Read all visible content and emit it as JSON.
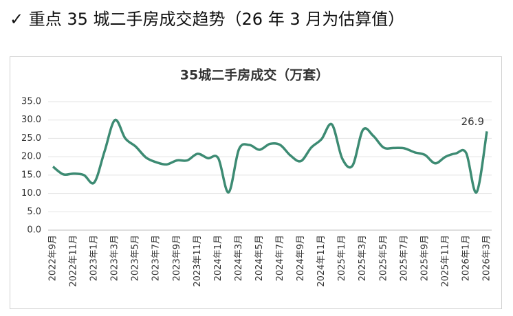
{
  "heading": "✓  重点 35 城二手房成交趋势（26 年 3 月为估算值）",
  "chart_data": {
    "type": "line",
    "title": "35城二手房成交（万套）",
    "categories": [
      "2022年9月",
      null,
      "2022年11月",
      null,
      "2023年1月",
      null,
      "2023年3月",
      null,
      "2023年5月",
      null,
      "2023年7月",
      null,
      "2023年9月",
      null,
      "2023年11月",
      null,
      "2024年1月",
      null,
      "2024年3月",
      null,
      "2024年5月",
      null,
      "2024年7月",
      null,
      "2024年9月",
      null,
      "2024年11月",
      null,
      "2025年1月",
      null,
      "2025年3月",
      null,
      "2025年5月",
      null,
      "2025年7月",
      null,
      "2025年9月",
      null,
      "2025年11月",
      null,
      "2026年1月",
      null,
      "2026年3月"
    ],
    "series": [
      {
        "name": "35城二手房成交",
        "color": "#3d8b73",
        "values": [
          17.3,
          15.2,
          15.4,
          15.0,
          13.0,
          21.5,
          30.0,
          25.0,
          22.8,
          19.8,
          18.5,
          17.9,
          19.0,
          19.0,
          20.8,
          19.6,
          19.6,
          10.3,
          22.0,
          23.2,
          21.9,
          23.5,
          23.2,
          20.3,
          18.8,
          22.5,
          24.8,
          28.8,
          19.5,
          17.6,
          27.3,
          25.7,
          22.5,
          22.4,
          22.3,
          21.2,
          20.5,
          18.2,
          20.0,
          20.9,
          21.0,
          10.3,
          26.9
        ]
      }
    ],
    "label_last": true,
    "ylim": [
      0,
      35
    ],
    "yticks": [
      {
        "value": 0,
        "label": "0.0"
      },
      {
        "value": 5,
        "label": "5.0"
      },
      {
        "value": 10,
        "label": "10.0"
      },
      {
        "value": 15,
        "label": "15.0"
      },
      {
        "value": 20,
        "label": "20.0"
      },
      {
        "value": 25,
        "label": "25.0"
      },
      {
        "value": 30,
        "label": "30.0"
      },
      {
        "value": 35,
        "label": "35.0"
      }
    ],
    "grid": true
  }
}
